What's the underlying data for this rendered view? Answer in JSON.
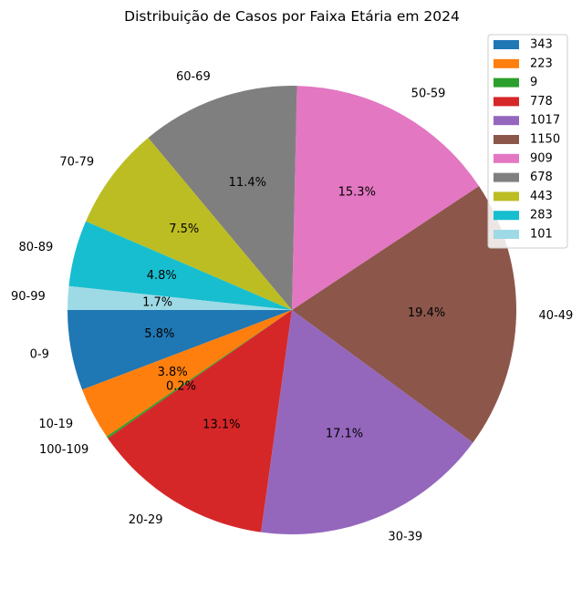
{
  "chart_data": {
    "type": "pie",
    "title": "Distribuição de Casos por Faixa Etária em 2024",
    "slices": [
      {
        "category": "0-9",
        "value": 343,
        "percent_label": "5.8%",
        "color": "#1f77b4"
      },
      {
        "category": "10-19",
        "value": 223,
        "percent_label": "3.8%",
        "color": "#ff7f0e"
      },
      {
        "category": "100-109",
        "value": 9,
        "percent_label": "0.2%",
        "color": "#2ca02c"
      },
      {
        "category": "20-29",
        "value": 778,
        "percent_label": "13.1%",
        "color": "#d62728"
      },
      {
        "category": "30-39",
        "value": 1017,
        "percent_label": "17.1%",
        "color": "#9467bd"
      },
      {
        "category": "40-49",
        "value": 1150,
        "percent_label": "19.4%",
        "color": "#8c564b"
      },
      {
        "category": "50-59",
        "value": 909,
        "percent_label": "15.3%",
        "color": "#e377c2"
      },
      {
        "category": "60-69",
        "value": 678,
        "percent_label": "11.4%",
        "color": "#7f7f7f"
      },
      {
        "category": "70-79",
        "value": 443,
        "percent_label": "7.5%",
        "color": "#bcbd22"
      },
      {
        "category": "80-89",
        "value": 283,
        "percent_label": "4.8%",
        "color": "#17becf"
      },
      {
        "category": "90-99",
        "value": 101,
        "percent_label": "1.7%",
        "color": "#9edae5"
      }
    ],
    "start_angle_deg": 180,
    "direction": "counterclockwise",
    "legend_entries": [
      "343",
      "223",
      "9",
      "778",
      "1017",
      "1150",
      "909",
      "678",
      "443",
      "283",
      "101"
    ],
    "legend_position": "upper-right"
  }
}
